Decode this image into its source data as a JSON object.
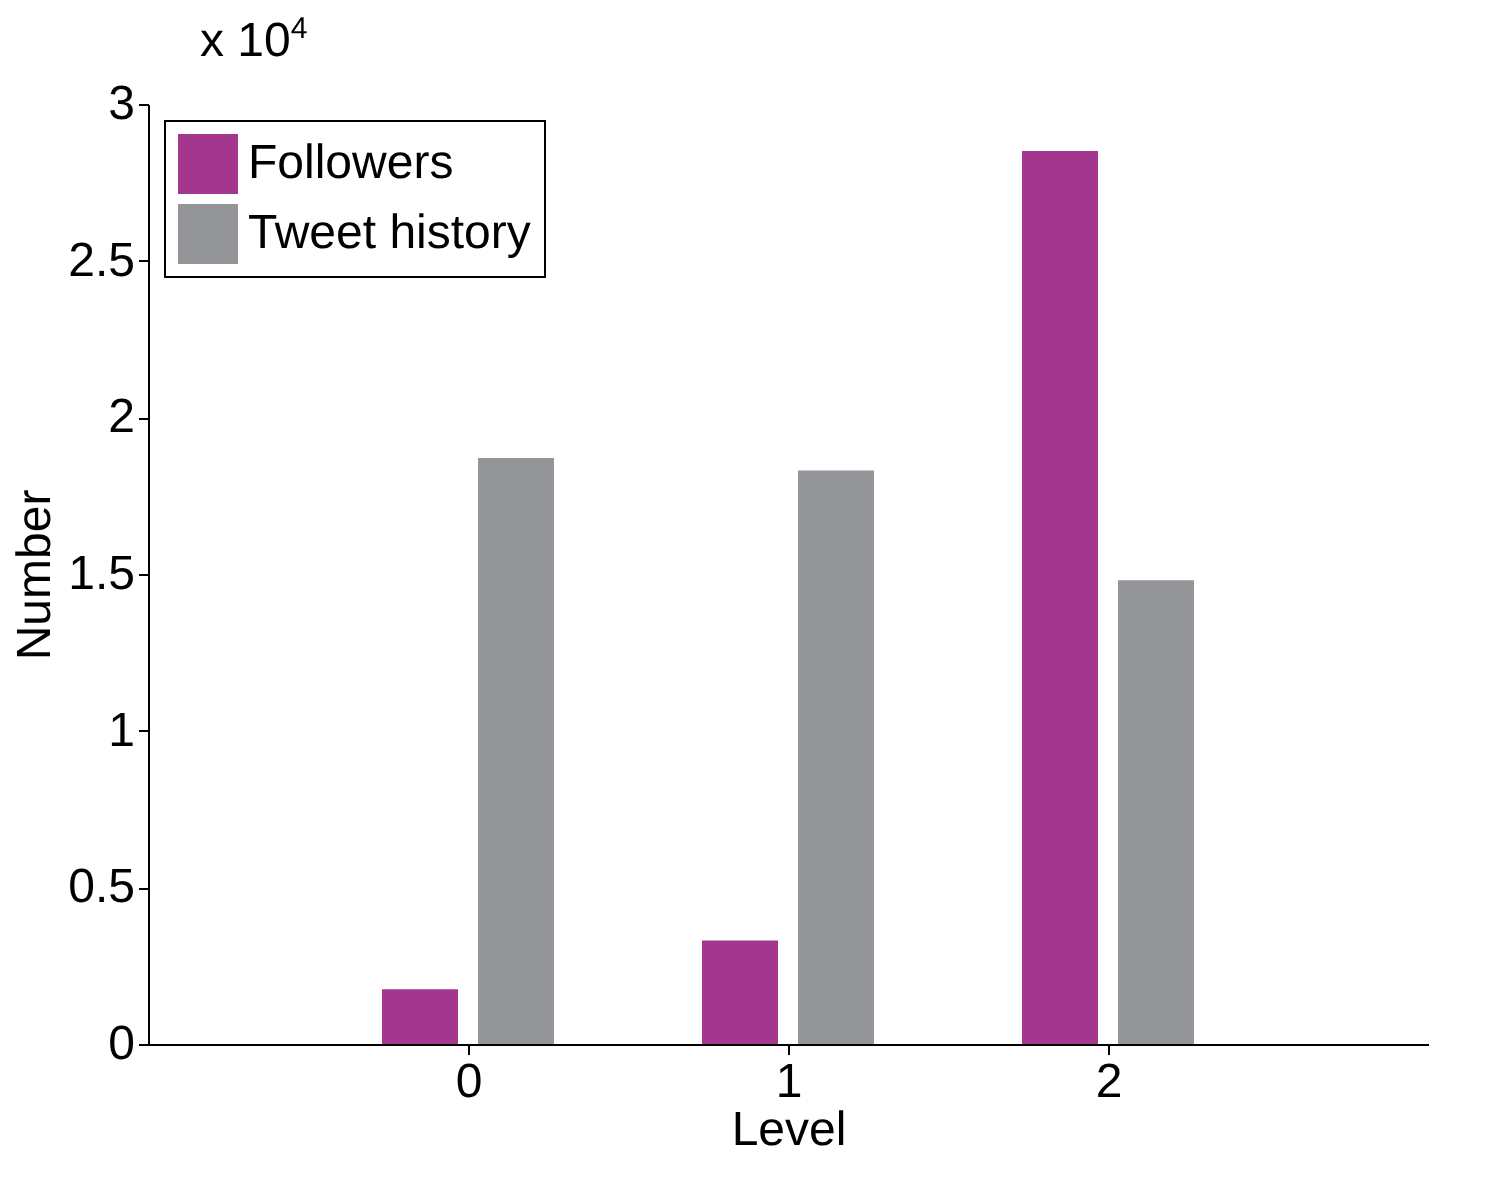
{
  "chart_data": {
    "type": "bar",
    "xlabel": "Level",
    "ylabel": "Number",
    "annotations": [
      "x 10$^{4}$"
    ],
    "x": [
      0,
      1,
      2
    ],
    "series": [
      {
        "name": "Followers",
        "color": "#a3378f",
        "values": [
          0.175,
          0.33,
          2.85
        ]
      },
      {
        "name": "Tweet history",
        "color": "#939598",
        "values": [
          1.87,
          1.83,
          1.48
        ]
      }
    ],
    "xlim": [
      -1,
      3
    ],
    "xticks": [
      0,
      1,
      2
    ],
    "ylim": [
      0,
      3
    ],
    "yticks": [
      0,
      0.5,
      1,
      1.5,
      2,
      2.5,
      3
    ],
    "grid": false,
    "legend": "top left"
  }
}
